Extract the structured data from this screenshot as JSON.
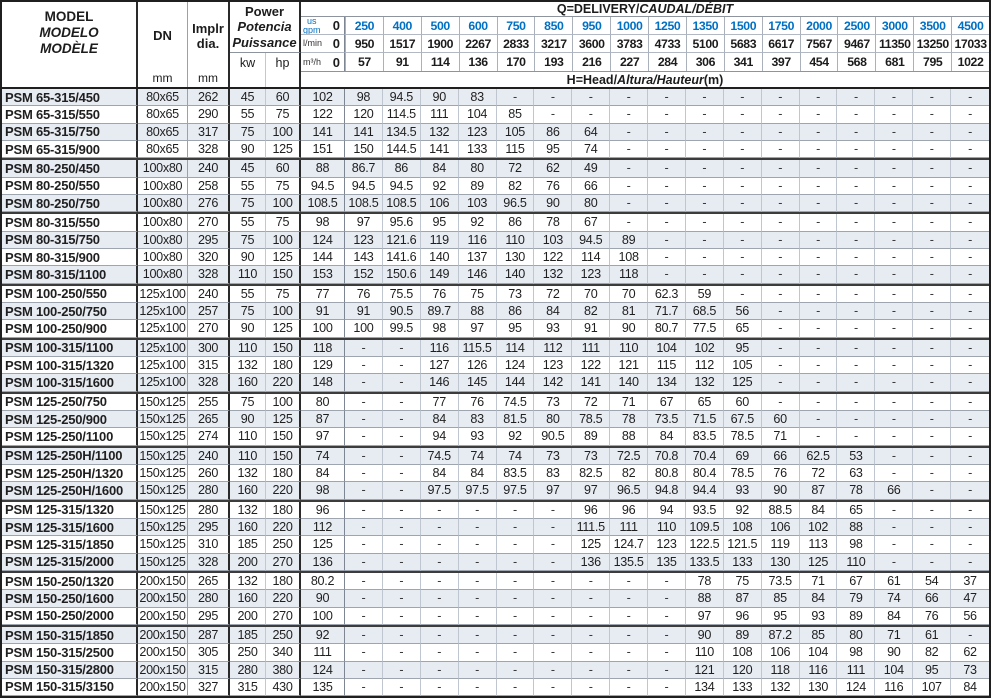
{
  "colors": {
    "accent_blue": "#0070c4",
    "stripe": "#e7ebf2"
  },
  "table": {
    "header": {
      "model_l1": "MODEL",
      "model_l2": "MODELO",
      "model_l3": "MODÈLE",
      "dn_label": "DN",
      "implr_l1": "Implr",
      "implr_l2": "dia.",
      "unit_mm": "mm",
      "power_l1": "Power",
      "power_l2": "Potencia",
      "power_l3": "Puissance",
      "kw_label": "kw",
      "hp_label": "hp",
      "q_title_bold": "Q=DELIVERY/",
      "q_title_italic": "CAUDAL/DÉBIT",
      "gpm_label_l1": "us",
      "gpm_label_l2": "gpm",
      "lmin_label": "l/min",
      "m3h_label": "m³/h",
      "zero": "0",
      "gpm": [
        "250",
        "400",
        "500",
        "600",
        "750",
        "850",
        "950",
        "1000",
        "1250",
        "1350",
        "1500",
        "1750",
        "2000",
        "2500",
        "3000",
        "3500",
        "4500"
      ],
      "lmin": [
        "950",
        "1517",
        "1900",
        "2267",
        "2833",
        "3217",
        "3600",
        "3783",
        "4733",
        "5100",
        "5683",
        "6617",
        "7567",
        "9467",
        "11350",
        "13250",
        "17033"
      ],
      "m3h": [
        "57",
        "91",
        "114",
        "136",
        "170",
        "193",
        "216",
        "227",
        "284",
        "306",
        "341",
        "397",
        "454",
        "568",
        "681",
        "795",
        "1022"
      ],
      "head_bold": "H=Head/",
      "head_italic": "Altura/Hauteur",
      "head_unit": "(m)"
    },
    "rows": [
      {
        "model": "PSM 65-315/450",
        "dn": "80x65",
        "dia": "262",
        "kw": "45",
        "hp": "60",
        "group_start": false,
        "heads": [
          "102",
          "98",
          "94.5",
          "90",
          "83",
          "-",
          "-",
          "-",
          "-",
          "-",
          "-",
          "-",
          "-",
          "-",
          "-",
          "-",
          "-",
          "-"
        ]
      },
      {
        "model": "PSM 65-315/550",
        "dn": "80x65",
        "dia": "290",
        "kw": "55",
        "hp": "75",
        "group_start": false,
        "heads": [
          "122",
          "120",
          "114.5",
          "111",
          "104",
          "85",
          "-",
          "-",
          "-",
          "-",
          "-",
          "-",
          "-",
          "-",
          "-",
          "-",
          "-",
          "-"
        ]
      },
      {
        "model": "PSM 65-315/750",
        "dn": "80x65",
        "dia": "317",
        "kw": "75",
        "hp": "100",
        "group_start": false,
        "heads": [
          "141",
          "141",
          "134.5",
          "132",
          "123",
          "105",
          "86",
          "64",
          "-",
          "-",
          "-",
          "-",
          "-",
          "-",
          "-",
          "-",
          "-",
          "-"
        ]
      },
      {
        "model": "PSM 65-315/900",
        "dn": "80x65",
        "dia": "328",
        "kw": "90",
        "hp": "125",
        "group_start": false,
        "heads": [
          "151",
          "150",
          "144.5",
          "141",
          "133",
          "115",
          "95",
          "74",
          "-",
          "-",
          "-",
          "-",
          "-",
          "-",
          "-",
          "-",
          "-",
          "-"
        ]
      },
      {
        "model": "PSM 80-250/450",
        "dn": "100x80",
        "dia": "240",
        "kw": "45",
        "hp": "60",
        "group_start": true,
        "heads": [
          "88",
          "86.7",
          "86",
          "84",
          "80",
          "72",
          "62",
          "49",
          "-",
          "-",
          "-",
          "-",
          "-",
          "-",
          "-",
          "-",
          "-",
          "-"
        ]
      },
      {
        "model": "PSM 80-250/550",
        "dn": "100x80",
        "dia": "258",
        "kw": "55",
        "hp": "75",
        "group_start": false,
        "heads": [
          "94.5",
          "94.5",
          "94.5",
          "92",
          "89",
          "82",
          "76",
          "66",
          "-",
          "-",
          "-",
          "-",
          "-",
          "-",
          "-",
          "-",
          "-",
          "-"
        ]
      },
      {
        "model": "PSM 80-250/750",
        "dn": "100x80",
        "dia": "276",
        "kw": "75",
        "hp": "100",
        "group_start": false,
        "heads": [
          "108.5",
          "108.5",
          "108.5",
          "106",
          "103",
          "96.5",
          "90",
          "80",
          "-",
          "-",
          "-",
          "-",
          "-",
          "-",
          "-",
          "-",
          "-",
          "-"
        ]
      },
      {
        "model": "PSM 80-315/550",
        "dn": "100x80",
        "dia": "270",
        "kw": "55",
        "hp": "75",
        "group_start": true,
        "heads": [
          "98",
          "97",
          "95.6",
          "95",
          "92",
          "86",
          "78",
          "67",
          "-",
          "-",
          "-",
          "-",
          "-",
          "-",
          "-",
          "-",
          "-",
          "-"
        ]
      },
      {
        "model": "PSM 80-315/750",
        "dn": "100x80",
        "dia": "295",
        "kw": "75",
        "hp": "100",
        "group_start": false,
        "heads": [
          "124",
          "123",
          "121.6",
          "119",
          "116",
          "110",
          "103",
          "94.5",
          "89",
          "-",
          "-",
          "-",
          "-",
          "-",
          "-",
          "-",
          "-",
          "-"
        ]
      },
      {
        "model": "PSM 80-315/900",
        "dn": "100x80",
        "dia": "320",
        "kw": "90",
        "hp": "125",
        "group_start": false,
        "heads": [
          "144",
          "143",
          "141.6",
          "140",
          "137",
          "130",
          "122",
          "114",
          "108",
          "-",
          "-",
          "-",
          "-",
          "-",
          "-",
          "-",
          "-",
          "-"
        ]
      },
      {
        "model": "PSM 80-315/1100",
        "dn": "100x80",
        "dia": "328",
        "kw": "110",
        "hp": "150",
        "group_start": false,
        "heads": [
          "153",
          "152",
          "150.6",
          "149",
          "146",
          "140",
          "132",
          "123",
          "118",
          "-",
          "-",
          "-",
          "-",
          "-",
          "-",
          "-",
          "-",
          "-"
        ]
      },
      {
        "model": "PSM 100-250/550",
        "dn": "125x100",
        "dia": "240",
        "kw": "55",
        "hp": "75",
        "group_start": true,
        "heads": [
          "77",
          "76",
          "75.5",
          "76",
          "75",
          "73",
          "72",
          "70",
          "70",
          "62.3",
          "59",
          "-",
          "-",
          "-",
          "-",
          "-",
          "-",
          "-"
        ]
      },
      {
        "model": "PSM 100-250/750",
        "dn": "125x100",
        "dia": "257",
        "kw": "75",
        "hp": "100",
        "group_start": false,
        "heads": [
          "91",
          "91",
          "90.5",
          "89.7",
          "88",
          "86",
          "84",
          "82",
          "81",
          "71.7",
          "68.5",
          "56",
          "-",
          "-",
          "-",
          "-",
          "-",
          "-"
        ]
      },
      {
        "model": "PSM 100-250/900",
        "dn": "125x100",
        "dia": "270",
        "kw": "90",
        "hp": "125",
        "group_start": false,
        "heads": [
          "100",
          "100",
          "99.5",
          "98",
          "97",
          "95",
          "93",
          "91",
          "90",
          "80.7",
          "77.5",
          "65",
          "-",
          "-",
          "-",
          "-",
          "-",
          "-"
        ]
      },
      {
        "model": "PSM 100-315/1100",
        "dn": "125x100",
        "dia": "300",
        "kw": "110",
        "hp": "150",
        "group_start": true,
        "heads": [
          "118",
          "-",
          "-",
          "116",
          "115.5",
          "114",
          "112",
          "111",
          "110",
          "104",
          "102",
          "95",
          "-",
          "-",
          "-",
          "-",
          "-",
          "-"
        ]
      },
      {
        "model": "PSM 100-315/1320",
        "dn": "125x100",
        "dia": "315",
        "kw": "132",
        "hp": "180",
        "group_start": false,
        "heads": [
          "129",
          "-",
          "-",
          "127",
          "126",
          "124",
          "123",
          "122",
          "121",
          "115",
          "112",
          "105",
          "-",
          "-",
          "-",
          "-",
          "-",
          "-"
        ]
      },
      {
        "model": "PSM 100-315/1600",
        "dn": "125x100",
        "dia": "328",
        "kw": "160",
        "hp": "220",
        "group_start": false,
        "heads": [
          "148",
          "-",
          "-",
          "146",
          "145",
          "144",
          "142",
          "141",
          "140",
          "134",
          "132",
          "125",
          "-",
          "-",
          "-",
          "-",
          "-",
          "-"
        ]
      },
      {
        "model": "PSM 125-250/750",
        "dn": "150x125",
        "dia": "255",
        "kw": "75",
        "hp": "100",
        "group_start": true,
        "heads": [
          "80",
          "-",
          "-",
          "77",
          "76",
          "74.5",
          "73",
          "72",
          "71",
          "67",
          "65",
          "60",
          "-",
          "-",
          "-",
          "-",
          "-",
          "-"
        ]
      },
      {
        "model": "PSM 125-250/900",
        "dn": "150x125",
        "dia": "265",
        "kw": "90",
        "hp": "125",
        "group_start": false,
        "heads": [
          "87",
          "-",
          "-",
          "84",
          "83",
          "81.5",
          "80",
          "78.5",
          "78",
          "73.5",
          "71.5",
          "67.5",
          "60",
          "-",
          "-",
          "-",
          "-",
          "-"
        ]
      },
      {
        "model": "PSM 125-250/1100",
        "dn": "150x125",
        "dia": "274",
        "kw": "110",
        "hp": "150",
        "group_start": false,
        "heads": [
          "97",
          "-",
          "-",
          "94",
          "93",
          "92",
          "90.5",
          "89",
          "88",
          "84",
          "83.5",
          "78.5",
          "71",
          "-",
          "-",
          "-",
          "-",
          "-"
        ]
      },
      {
        "model": "PSM 125-250H/1100",
        "dn": "150x125",
        "dia": "240",
        "kw": "110",
        "hp": "150",
        "group_start": true,
        "heads": [
          "74",
          "-",
          "-",
          "74.5",
          "74",
          "74",
          "73",
          "73",
          "72.5",
          "70.8",
          "70.4",
          "69",
          "66",
          "62.5",
          "53",
          "-",
          "-",
          "-"
        ]
      },
      {
        "model": "PSM 125-250H/1320",
        "dn": "150x125",
        "dia": "260",
        "kw": "132",
        "hp": "180",
        "group_start": false,
        "heads": [
          "84",
          "-",
          "-",
          "84",
          "84",
          "83.5",
          "83",
          "82.5",
          "82",
          "80.8",
          "80.4",
          "78.5",
          "76",
          "72",
          "63",
          "-",
          "-",
          "-"
        ]
      },
      {
        "model": "PSM 125-250H/1600",
        "dn": "150x125",
        "dia": "280",
        "kw": "160",
        "hp": "220",
        "group_start": false,
        "heads": [
          "98",
          "-",
          "-",
          "97.5",
          "97.5",
          "97.5",
          "97",
          "97",
          "96.5",
          "94.8",
          "94.4",
          "93",
          "90",
          "87",
          "78",
          "66",
          "-",
          "-"
        ]
      },
      {
        "model": "PSM 125-315/1320",
        "dn": "150x125",
        "dia": "280",
        "kw": "132",
        "hp": "180",
        "group_start": true,
        "heads": [
          "96",
          "-",
          "-",
          "-",
          "-",
          "-",
          "-",
          "96",
          "96",
          "94",
          "93.5",
          "92",
          "88.5",
          "84",
          "65",
          "-",
          "-",
          "-"
        ]
      },
      {
        "model": "PSM 125-315/1600",
        "dn": "150x125",
        "dia": "295",
        "kw": "160",
        "hp": "220",
        "group_start": false,
        "heads": [
          "112",
          "-",
          "-",
          "-",
          "-",
          "-",
          "-",
          "111.5",
          "111",
          "110",
          "109.5",
          "108",
          "106",
          "102",
          "88",
          "-",
          "-",
          "-"
        ]
      },
      {
        "model": "PSM 125-315/1850",
        "dn": "150x125",
        "dia": "310",
        "kw": "185",
        "hp": "250",
        "group_start": false,
        "heads": [
          "125",
          "-",
          "-",
          "-",
          "-",
          "-",
          "-",
          "125",
          "124.7",
          "123",
          "122.5",
          "121.5",
          "119",
          "113",
          "98",
          "-",
          "-",
          "-"
        ]
      },
      {
        "model": "PSM 125-315/2000",
        "dn": "150x125",
        "dia": "328",
        "kw": "200",
        "hp": "270",
        "group_start": false,
        "heads": [
          "136",
          "-",
          "-",
          "-",
          "-",
          "-",
          "-",
          "136",
          "135.5",
          "135",
          "133.5",
          "133",
          "130",
          "125",
          "110",
          "-",
          "-",
          "-"
        ]
      },
      {
        "model": "PSM 150-250/1320",
        "dn": "200x150",
        "dia": "265",
        "kw": "132",
        "hp": "180",
        "group_start": true,
        "heads": [
          "80.2",
          "-",
          "-",
          "-",
          "-",
          "-",
          "-",
          "-",
          "-",
          "-",
          "78",
          "75",
          "73.5",
          "71",
          "67",
          "61",
          "54",
          "37"
        ]
      },
      {
        "model": "PSM 150-250/1600",
        "dn": "200x150",
        "dia": "280",
        "kw": "160",
        "hp": "220",
        "group_start": false,
        "heads": [
          "90",
          "-",
          "-",
          "-",
          "-",
          "-",
          "-",
          "-",
          "-",
          "-",
          "88",
          "87",
          "85",
          "84",
          "79",
          "74",
          "66",
          "47"
        ]
      },
      {
        "model": "PSM 150-250/2000",
        "dn": "200x150",
        "dia": "295",
        "kw": "200",
        "hp": "270",
        "group_start": false,
        "heads": [
          "100",
          "-",
          "-",
          "-",
          "-",
          "-",
          "-",
          "-",
          "-",
          "-",
          "97",
          "96",
          "95",
          "93",
          "89",
          "84",
          "76",
          "56"
        ]
      },
      {
        "model": "PSM 150-315/1850",
        "dn": "200x150",
        "dia": "287",
        "kw": "185",
        "hp": "250",
        "group_start": true,
        "heads": [
          "92",
          "-",
          "-",
          "-",
          "-",
          "-",
          "-",
          "-",
          "-",
          "-",
          "90",
          "89",
          "87.2",
          "85",
          "80",
          "71",
          "61",
          "-"
        ]
      },
      {
        "model": "PSM 150-315/2500",
        "dn": "200x150",
        "dia": "305",
        "kw": "250",
        "hp": "340",
        "group_start": false,
        "heads": [
          "111",
          "-",
          "-",
          "-",
          "-",
          "-",
          "-",
          "-",
          "-",
          "-",
          "110",
          "108",
          "106",
          "104",
          "98",
          "90",
          "82",
          "62"
        ]
      },
      {
        "model": "PSM 150-315/2800",
        "dn": "200x150",
        "dia": "315",
        "kw": "280",
        "hp": "380",
        "group_start": false,
        "heads": [
          "124",
          "-",
          "-",
          "-",
          "-",
          "-",
          "-",
          "-",
          "-",
          "-",
          "121",
          "120",
          "118",
          "116",
          "111",
          "104",
          "95",
          "73"
        ]
      },
      {
        "model": "PSM 150-315/3150",
        "dn": "200x150",
        "dia": "327",
        "kw": "315",
        "hp": "430",
        "group_start": false,
        "heads": [
          "135",
          "-",
          "-",
          "-",
          "-",
          "-",
          "-",
          "-",
          "-",
          "-",
          "134",
          "133",
          "132",
          "130",
          "124",
          "116",
          "107",
          "84"
        ]
      }
    ]
  }
}
